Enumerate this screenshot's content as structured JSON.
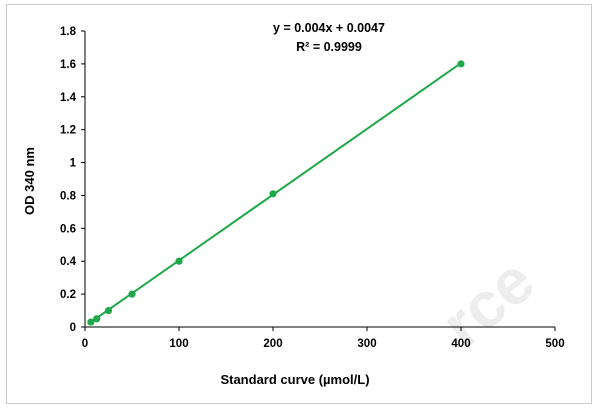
{
  "chart_data": {
    "type": "scatter",
    "xlabel": "Standard curve (µmol/L)",
    "ylabel": "OD 340 nm",
    "xlim": [
      0,
      500
    ],
    "ylim": [
      0,
      1.8
    ],
    "xticks": [
      0,
      100,
      200,
      300,
      400,
      500
    ],
    "yticks": [
      0,
      0.2,
      0.4,
      0.6,
      0.8,
      1,
      1.2,
      1.4,
      1.6,
      1.8
    ],
    "series": [
      {
        "x": [
          6.25,
          12.5,
          25,
          50,
          100,
          200,
          400
        ],
        "y": [
          0.03,
          0.05,
          0.1,
          0.2,
          0.4,
          0.81,
          1.6
        ]
      }
    ],
    "trendline": {
      "slope": 0.004,
      "intercept": 0.0047
    },
    "equation": "y = 0.004x + 0.0047",
    "r_squared": "R² = 0.9999",
    "color": "#1fa84a",
    "grid": false,
    "legend": "none"
  },
  "watermark": "rce"
}
